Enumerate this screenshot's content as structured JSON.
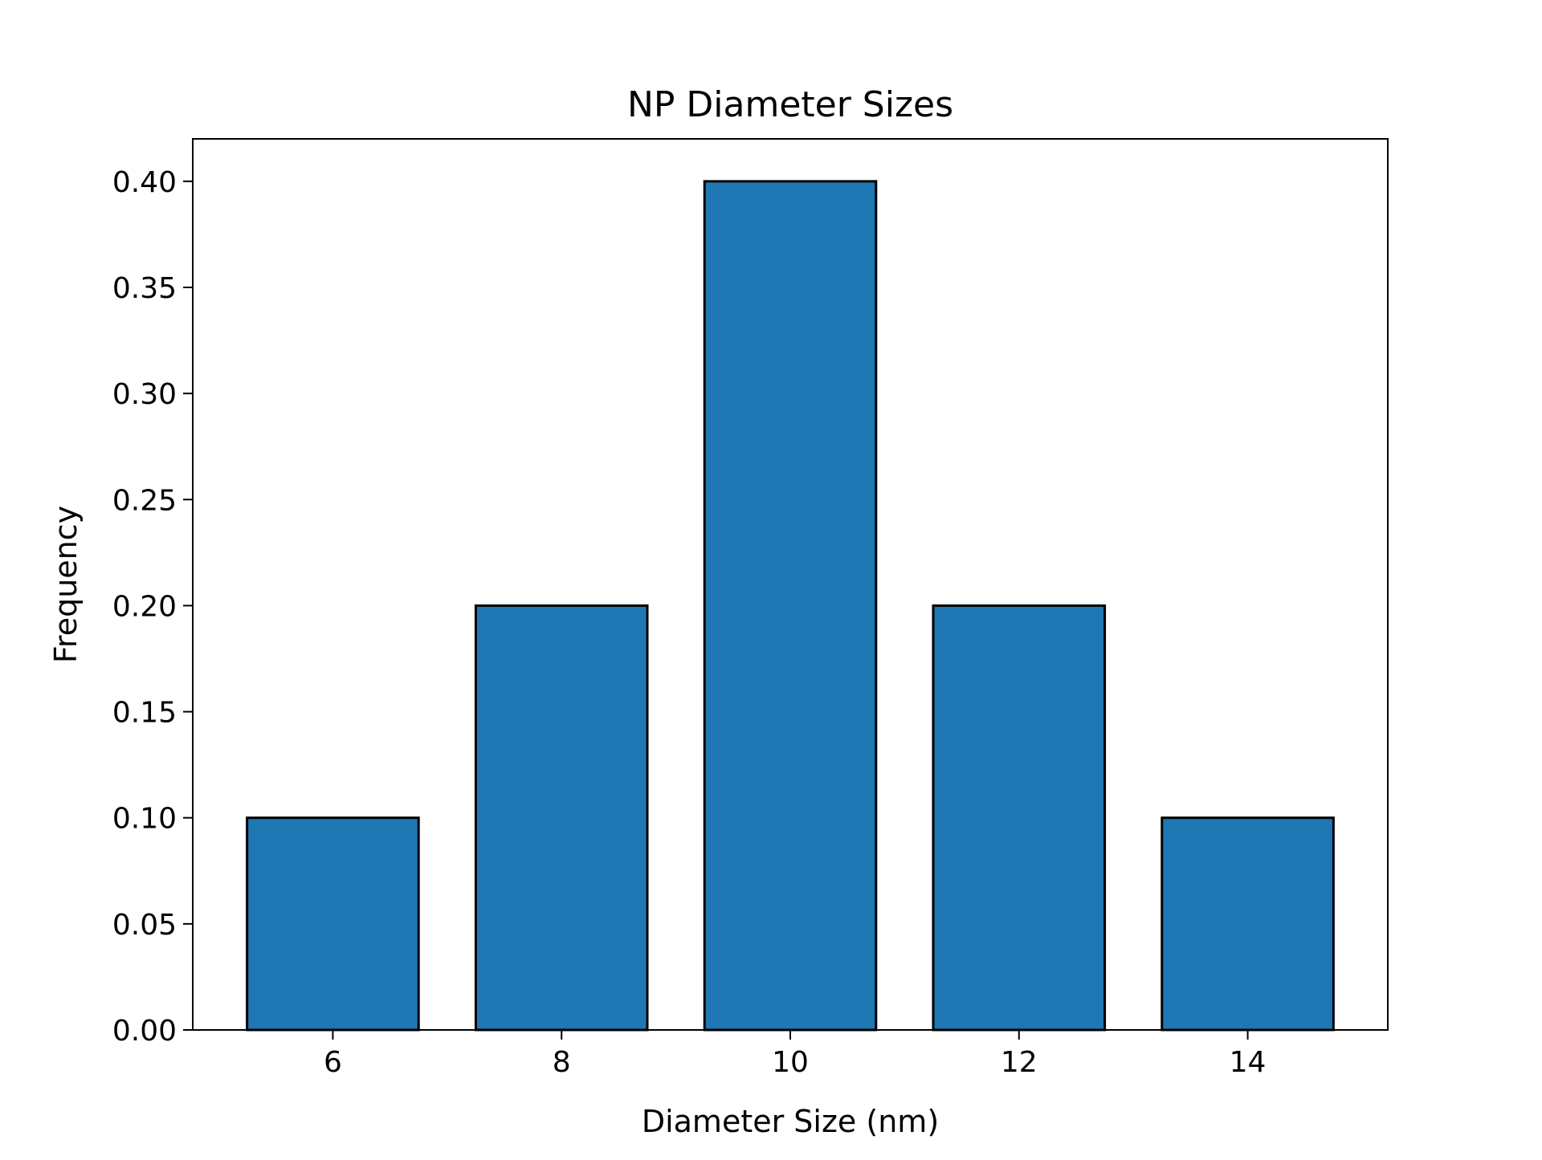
{
  "chart_data": {
    "type": "bar",
    "title": "NP Diameter Sizes",
    "xlabel": "Diameter Size (nm)",
    "ylabel": "Frequency",
    "categories": [
      6,
      8,
      10,
      12,
      14
    ],
    "values": [
      0.1,
      0.2,
      0.4,
      0.2,
      0.1
    ],
    "bar_width": 1.5,
    "xlim": [
      4.775,
      15.225
    ],
    "ylim": [
      0,
      0.42
    ],
    "xticks": [
      6,
      8,
      10,
      12,
      14
    ],
    "xtick_labels": [
      "6",
      "8",
      "10",
      "12",
      "14"
    ],
    "yticks": [
      0,
      0.05,
      0.1,
      0.15,
      0.2,
      0.25,
      0.3,
      0.35,
      0.4
    ],
    "ytick_labels": [
      "0.00",
      "0.05",
      "0.10",
      "0.15",
      "0.20",
      "0.25",
      "0.30",
      "0.35",
      "0.40"
    ],
    "grid": false,
    "colors": {
      "bar_fill": "#1f77b4",
      "bar_edge": "#000000",
      "axes": "#000000"
    }
  }
}
